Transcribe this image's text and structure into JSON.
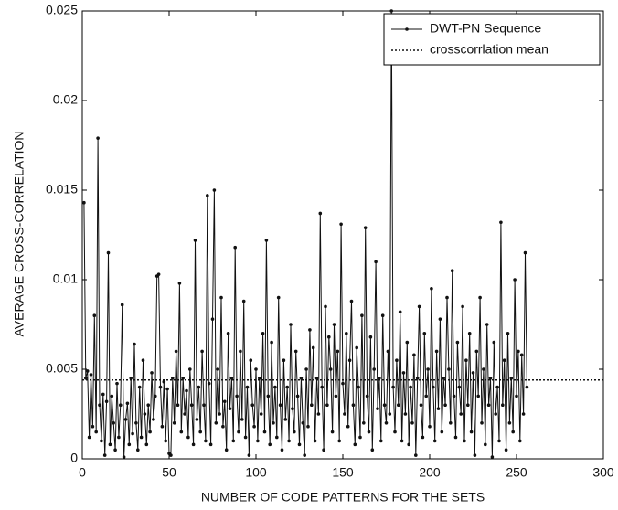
{
  "chart_data": {
    "type": "line",
    "xlabel": "NUMBER OF CODE PATTERNS FOR THE SETS",
    "ylabel": "AVERAGE CROSS-CORRELATION",
    "xlim": [
      0,
      300
    ],
    "xticks": [
      0,
      50,
      100,
      150,
      200,
      250,
      300
    ],
    "ylim": [
      0,
      0.025
    ],
    "yticks": [
      0,
      0.005,
      0.01,
      0.015,
      0.02,
      0.025
    ],
    "legend": "upper right",
    "x": [
      1,
      2,
      3,
      4,
      5,
      6,
      7,
      8,
      9,
      10,
      11,
      12,
      13,
      14,
      15,
      16,
      17,
      18,
      19,
      20,
      21,
      22,
      23,
      24,
      25,
      26,
      27,
      28,
      29,
      30,
      31,
      32,
      33,
      34,
      35,
      36,
      37,
      38,
      39,
      40,
      41,
      42,
      43,
      44,
      45,
      46,
      47,
      48,
      49,
      50,
      51,
      52,
      53,
      54,
      55,
      56,
      57,
      58,
      59,
      60,
      61,
      62,
      63,
      64,
      65,
      66,
      67,
      68,
      69,
      70,
      71,
      72,
      73,
      74,
      75,
      76,
      77,
      78,
      79,
      80,
      81,
      82,
      83,
      84,
      85,
      86,
      87,
      88,
      89,
      90,
      91,
      92,
      93,
      94,
      95,
      96,
      97,
      98,
      99,
      100,
      101,
      102,
      103,
      104,
      105,
      106,
      107,
      108,
      109,
      110,
      111,
      112,
      113,
      114,
      115,
      116,
      117,
      118,
      119,
      120,
      121,
      122,
      123,
      124,
      125,
      126,
      127,
      128,
      129,
      130,
      131,
      132,
      133,
      134,
      135,
      136,
      137,
      138,
      139,
      140,
      141,
      142,
      143,
      144,
      145,
      146,
      147,
      148,
      149,
      150,
      151,
      152,
      153,
      154,
      155,
      156,
      157,
      158,
      159,
      160,
      161,
      162,
      163,
      164,
      165,
      166,
      167,
      168,
      169,
      170,
      171,
      172,
      173,
      174,
      175,
      176,
      177,
      178,
      179,
      180,
      181,
      182,
      183,
      184,
      185,
      186,
      187,
      188,
      189,
      190,
      191,
      192,
      193,
      194,
      195,
      196,
      197,
      198,
      199,
      200,
      201,
      202,
      203,
      204,
      205,
      206,
      207,
      208,
      209,
      210,
      211,
      212,
      213,
      214,
      215,
      216,
      217,
      218,
      219,
      220,
      221,
      222,
      223,
      224,
      225,
      226,
      227,
      228,
      229,
      230,
      231,
      232,
      233,
      234,
      235,
      236,
      237,
      238,
      239,
      240,
      241,
      242,
      243,
      244,
      245,
      246,
      247,
      248,
      249,
      250,
      251,
      252,
      253,
      254,
      255,
      256
    ],
    "series": [
      {
        "name": "DWT-PN Sequence",
        "color": "#111111",
        "values": [
          0.0143,
          0.0045,
          0.0049,
          0.0012,
          0.0047,
          0.0018,
          0.008,
          0.0015,
          0.0179,
          0.003,
          0.001,
          0.0036,
          0.0002,
          0.0032,
          0.0115,
          0.0008,
          0.0035,
          0.002,
          0.0005,
          0.0042,
          0.0012,
          0.003,
          0.0086,
          0.0001,
          0.0022,
          0.0031,
          0.0008,
          0.0045,
          0.0014,
          0.0064,
          0.002,
          0.0005,
          0.004,
          0.0012,
          0.0055,
          0.0025,
          0.0008,
          0.003,
          0.0015,
          0.0048,
          0.0022,
          0.0035,
          0.0102,
          0.0103,
          0.004,
          0.0018,
          0.0043,
          0.001,
          0.0039,
          0.0003,
          0.0002,
          0.0045,
          0.002,
          0.006,
          0.003,
          0.0098,
          0.0015,
          0.0045,
          0.0025,
          0.0038,
          0.0012,
          0.005,
          0.003,
          0.0008,
          0.0122,
          0.0022,
          0.004,
          0.0015,
          0.006,
          0.003,
          0.001,
          0.0147,
          0.0042,
          0.0008,
          0.0078,
          0.015,
          0.002,
          0.005,
          0.0025,
          0.009,
          0.0018,
          0.0032,
          0.0005,
          0.007,
          0.0028,
          0.0045,
          0.001,
          0.0118,
          0.0035,
          0.0015,
          0.006,
          0.0022,
          0.0088,
          0.0012,
          0.004,
          0.0002,
          0.0055,
          0.003,
          0.0018,
          0.005,
          0.001,
          0.0045,
          0.0025,
          0.007,
          0.0015,
          0.0122,
          0.0035,
          0.0008,
          0.0065,
          0.002,
          0.004,
          0.0012,
          0.009,
          0.003,
          0.0005,
          0.0055,
          0.0022,
          0.004,
          0.001,
          0.0075,
          0.0028,
          0.0015,
          0.006,
          0.0035,
          0.0008,
          0.0045,
          0.002,
          0.0002,
          0.005,
          0.0018,
          0.0072,
          0.003,
          0.0062,
          0.001,
          0.0045,
          0.0025,
          0.0137,
          0.004,
          0.0005,
          0.0085,
          0.003,
          0.0068,
          0.005,
          0.0015,
          0.0075,
          0.0035,
          0.006,
          0.001,
          0.0131,
          0.0042,
          0.0025,
          0.007,
          0.0018,
          0.0055,
          0.0088,
          0.003,
          0.0008,
          0.0062,
          0.004,
          0.0012,
          0.008,
          0.002,
          0.0129,
          0.0035,
          0.0015,
          0.0068,
          0.0005,
          0.005,
          0.011,
          0.0028,
          0.0045,
          0.001,
          0.008,
          0.003,
          0.002,
          0.006,
          0.0025,
          0.025,
          0.004,
          0.0015,
          0.0055,
          0.003,
          0.0082,
          0.001,
          0.0048,
          0.0025,
          0.0065,
          0.0008,
          0.004,
          0.002,
          0.0058,
          0.0002,
          0.0045,
          0.0085,
          0.003,
          0.0012,
          0.007,
          0.0035,
          0.005,
          0.0018,
          0.0095,
          0.004,
          0.001,
          0.006,
          0.0028,
          0.0078,
          0.0015,
          0.0045,
          0.003,
          0.009,
          0.005,
          0.002,
          0.0105,
          0.0035,
          0.0012,
          0.0065,
          0.004,
          0.0025,
          0.0085,
          0.001,
          0.0055,
          0.003,
          0.007,
          0.0015,
          0.0048,
          0.0002,
          0.006,
          0.0035,
          0.009,
          0.002,
          0.005,
          0.0008,
          0.0075,
          0.003,
          0.0045,
          0.0001,
          0.0065,
          0.0025,
          0.004,
          0.001,
          0.0132,
          0.003,
          0.0055,
          0.0005,
          0.007,
          0.002,
          0.0045,
          0.0015,
          0.01,
          0.0035,
          0.006,
          0.001,
          0.0058,
          0.0025,
          0.0115,
          0.004
        ]
      }
    ],
    "reference_line": {
      "name": "crosscorrlation mean",
      "value": 0.0044,
      "color": "#111111"
    }
  }
}
